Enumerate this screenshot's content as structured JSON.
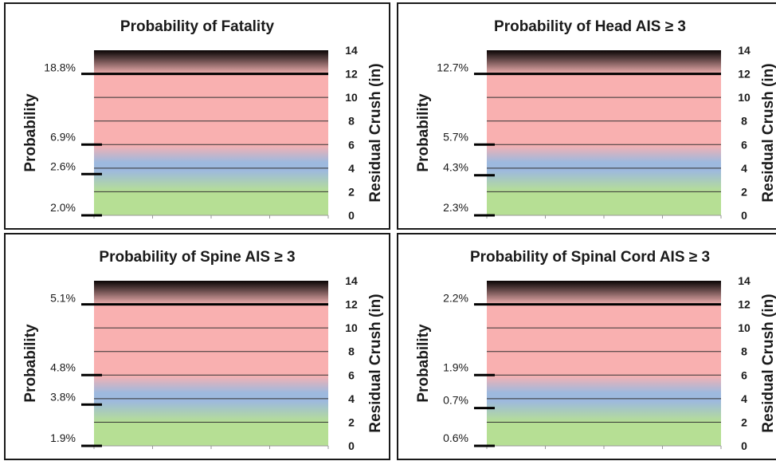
{
  "colors": {
    "top_band": [
      "#080404",
      "#f0b0b0"
    ],
    "pink": "#f9b0b0",
    "blue": "#9db9de",
    "green": "#b6df94",
    "line": "#000000",
    "grid": "#333333"
  },
  "chart_data": [
    {
      "type": "bar",
      "title": "Probability of Fatality",
      "ylabel_left": "Probability",
      "ylabel_right": "Residual Crush (in)",
      "ylim_right": [
        0,
        14
      ],
      "right_ticks": [
        0,
        2,
        4,
        6,
        8,
        10,
        12,
        14
      ],
      "probability_marks": [
        {
          "label": "18.8%",
          "crush": 12
        },
        {
          "label": "6.9%",
          "crush": 6
        },
        {
          "label": "2.6%",
          "crush": 3.5
        },
        {
          "label": "2.0%",
          "crush": 0
        }
      ],
      "bands": {
        "green_top": 3,
        "blue_top": 5,
        "pink_top": 12
      }
    },
    {
      "type": "bar",
      "title": "Probability of Head AIS ≥ 3",
      "ylabel_left": "Probability",
      "ylabel_right": "Residual Crush (in)",
      "ylim_right": [
        0,
        14
      ],
      "right_ticks": [
        0,
        2,
        4,
        6,
        8,
        10,
        12,
        14
      ],
      "probability_marks": [
        {
          "label": "12.7%",
          "crush": 12
        },
        {
          "label": "5.7%",
          "crush": 6
        },
        {
          "label": "4.3%",
          "crush": 3.4
        },
        {
          "label": "2.3%",
          "crush": 0
        }
      ],
      "bands": {
        "green_top": 3,
        "blue_top": 5,
        "pink_top": 12
      }
    },
    {
      "type": "bar",
      "title": "Probability of Spine AIS ≥ 3",
      "ylabel_left": "Probability",
      "ylabel_right": "Residual Crush (in)",
      "ylim_right": [
        0,
        14
      ],
      "right_ticks": [
        0,
        2,
        4,
        6,
        8,
        10,
        12,
        14
      ],
      "probability_marks": [
        {
          "label": "5.1%",
          "crush": 12
        },
        {
          "label": "4.8%",
          "crush": 6
        },
        {
          "label": "3.8%",
          "crush": 3.5
        },
        {
          "label": "1.9%",
          "crush": 0
        }
      ],
      "bands": {
        "green_top": 3,
        "blue_top": 5,
        "pink_top": 12
      }
    },
    {
      "type": "bar",
      "title": "Probability of Spinal Cord AIS ≥ 3",
      "ylabel_left": "Probability",
      "ylabel_right": "Residual Crush (in)",
      "ylim_right": [
        0,
        14
      ],
      "right_ticks": [
        0,
        2,
        4,
        6,
        8,
        10,
        12,
        14
      ],
      "probability_marks": [
        {
          "label": "2.2%",
          "crush": 12
        },
        {
          "label": "1.9%",
          "crush": 6
        },
        {
          "label": "0.7%",
          "crush": 3.2
        },
        {
          "label": "0.6%",
          "crush": 0
        }
      ],
      "bands": {
        "green_top": 3,
        "blue_top": 5,
        "pink_top": 12
      }
    }
  ]
}
